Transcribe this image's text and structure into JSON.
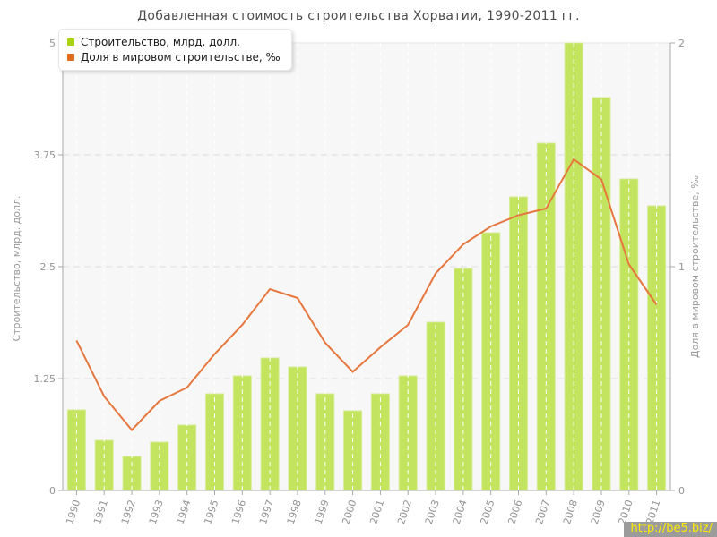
{
  "title": "Добавленная стоимость строительства Хорватии, 1990-2011 гг.",
  "legend": {
    "items": [
      {
        "label": "Строительство, млрд. долл.",
        "color": "#a9d30e"
      },
      {
        "label": "Доля в мировом строительстве, ‰",
        "color": "#df6b1c"
      }
    ]
  },
  "axes": {
    "left": {
      "title": "Строительство, млрд. долл.",
      "tick_labels": [
        "0",
        "1.25",
        "2.5",
        "3.75",
        "5"
      ],
      "tick_values": [
        0,
        1.25,
        2.5,
        3.75,
        5
      ],
      "max": 5
    },
    "right": {
      "title": "Доля в мировом строительстве, ‰",
      "tick_labels": [
        "0",
        "1",
        "2"
      ],
      "tick_values": [
        0,
        1,
        2
      ],
      "max": 2
    }
  },
  "chart_data": {
    "type": "bar",
    "title": "Добавленная стоимость строительства Хорватии, 1990-2011 гг.",
    "categories": [
      "1990",
      "1991",
      "1992",
      "1993",
      "1994",
      "1995",
      "1996",
      "1997",
      "1998",
      "1999",
      "2000",
      "2001",
      "2002",
      "2003",
      "2004",
      "2005",
      "2006",
      "2007",
      "2008",
      "2009",
      "2010",
      "2011"
    ],
    "series": [
      {
        "name": "Строительство, млрд. долл.",
        "type": "bar",
        "axis": "left",
        "values": [
          0.9,
          0.56,
          0.38,
          0.54,
          0.73,
          1.08,
          1.28,
          1.48,
          1.38,
          1.08,
          0.89,
          1.08,
          1.28,
          1.88,
          2.48,
          2.88,
          3.28,
          3.88,
          5.0,
          4.39,
          3.48,
          3.18
        ]
      },
      {
        "name": "Доля в мировом строительстве, ‰",
        "type": "line",
        "axis": "right",
        "values": [
          0.67,
          0.42,
          0.27,
          0.4,
          0.46,
          0.61,
          0.74,
          0.9,
          0.86,
          0.66,
          0.53,
          0.64,
          0.74,
          0.97,
          1.1,
          1.18,
          1.23,
          1.26,
          1.48,
          1.39,
          1.01,
          0.83
        ]
      }
    ],
    "ylabel_left": "Строительство, млрд. долл.",
    "ylabel_right": "Доля в мировом строительстве, ‰",
    "ylim_left": [
      0,
      5
    ],
    "ylim_right": [
      0,
      2
    ],
    "grid": true,
    "legend_position": "top-left"
  },
  "watermark": {
    "text": "http://be5.biz/",
    "bg": "#9b9b9b",
    "color": "#ffec00"
  },
  "colors": {
    "bar_fill": "#c2e45e",
    "bar_stroke": "#d6ec96",
    "line": "#e5773f",
    "plot_bg": "#f7f7f7",
    "grid_h": "#dcdcdc",
    "grid_top": "#e6e6e6",
    "grid_v": "#ffffff",
    "axis": "#a8a8a8",
    "tick_text": "#949494",
    "axis_title_text": "#9a9a9a",
    "title_text": "#4d4d4d"
  }
}
